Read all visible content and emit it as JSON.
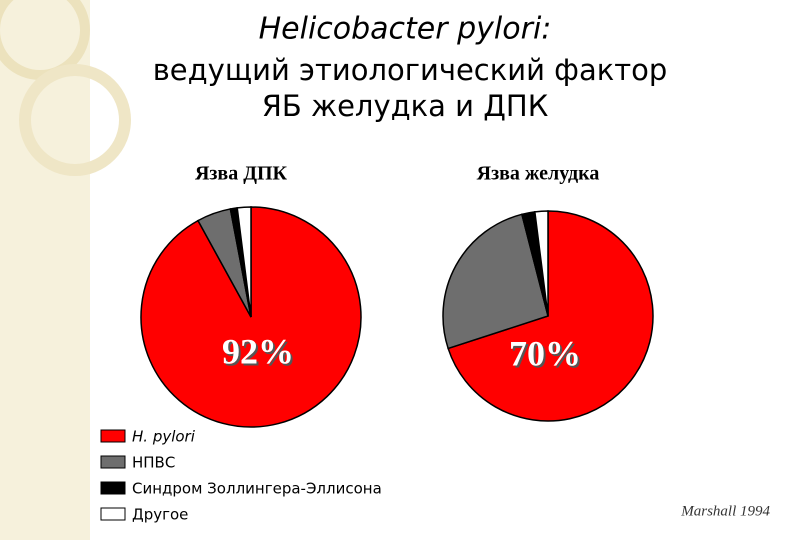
{
  "slide": {
    "title": "Helicobacter pylori:",
    "subtitle_line1": "ведущий этиологический фактор",
    "subtitle_line2": "ЯБ  желудка и ДПК",
    "source": "Marshall 1994"
  },
  "chart_data": [
    {
      "type": "pie",
      "title": "Язва ДПК",
      "categories": [
        "H. pylori",
        "НПВС",
        "Синдром Золлингера-Эллисона",
        "Другое"
      ],
      "colors": [
        "#ff0000",
        "#6e6e6e",
        "#000000",
        "#ffffff"
      ],
      "values": [
        92,
        5,
        1,
        2
      ],
      "value_labels": [
        "92%",
        null,
        null,
        null
      ]
    },
    {
      "type": "pie",
      "title": "Язва желудка",
      "values": [
        70,
        26,
        2,
        2
      ],
      "value_labels": [
        "70%",
        null,
        null,
        null
      ]
    }
  ]
}
